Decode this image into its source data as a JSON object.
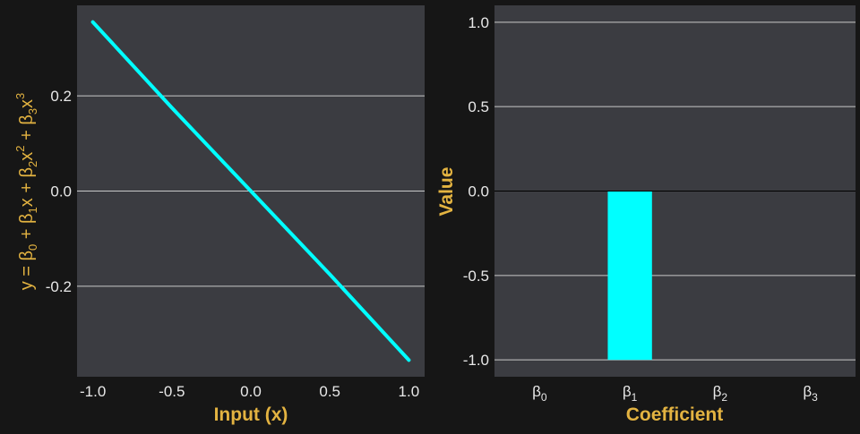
{
  "colors": {
    "background": "#161616",
    "panel": "#3b3c41",
    "grid": "#c8c8c8",
    "accent": "#00ffff",
    "axis_label": "#e3b341",
    "tick": "#e8e8e8"
  },
  "chart_data": [
    {
      "type": "line",
      "xlabel": "Input (x)",
      "ylabel": "y = β0 + β1x + β2x2 + β3x3",
      "xlim": [
        -1.1,
        1.1
      ],
      "ylim": [
        -0.39,
        0.39
      ],
      "x_ticks": [
        -1.0,
        -0.5,
        0.0,
        0.5,
        1.0
      ],
      "x_tick_labels": [
        "-1.0",
        "-0.5",
        "0.0",
        "0.5",
        "1.0"
      ],
      "y_ticks": [
        -0.2,
        0.0,
        0.2
      ],
      "y_tick_labels": [
        "-0.2",
        "0.0",
        "0.2"
      ],
      "grid": "horizontal",
      "series": [
        {
          "x": [
            -1.0,
            -0.5,
            0.0,
            0.5,
            1.0
          ],
          "y": [
            0.355,
            0.175,
            0.0,
            -0.175,
            -0.355
          ]
        }
      ]
    },
    {
      "type": "bar",
      "xlabel": "Coefficient",
      "ylabel": "Value",
      "categories": [
        "β0",
        "β1",
        "β2",
        "β3"
      ],
      "values": [
        0.0,
        -1.0,
        0.0,
        0.0
      ],
      "ylim": [
        -1.1,
        1.1
      ],
      "y_ticks": [
        -1.0,
        -0.5,
        0.0,
        0.5,
        1.0
      ],
      "y_tick_labels": [
        "-1.0",
        "-0.5",
        "0.0",
        "0.5",
        "1.0"
      ],
      "grid": "horizontal"
    }
  ]
}
